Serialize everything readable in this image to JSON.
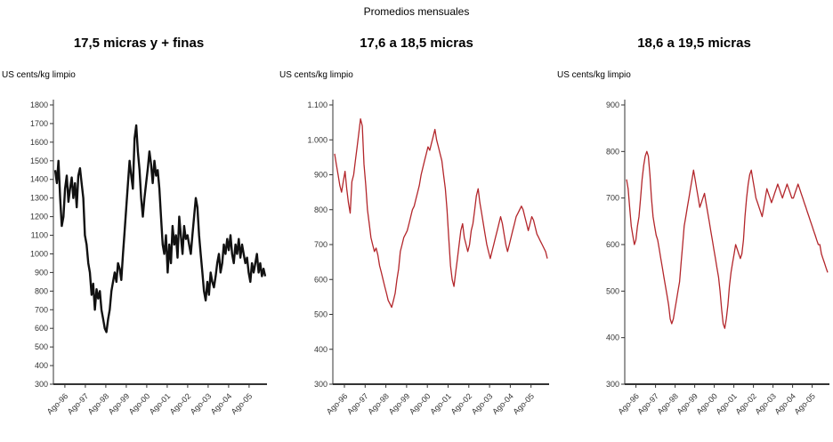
{
  "figure": {
    "title": "Promedios mensuales"
  },
  "chart_data": [
    {
      "type": "line",
      "title": "17,5 micras y + finas",
      "ylabel": "US cents/kg limpio",
      "xlabel": "",
      "ylim": [
        300,
        1800
      ],
      "yticks": [
        "1800",
        "1700",
        "1600",
        "1500",
        "1400",
        "1300",
        "1200",
        "1100",
        "1000",
        "900",
        "800",
        "700",
        "600",
        "500",
        "400",
        "300"
      ],
      "xticks": [
        "Ago-96",
        "Ago-97",
        "Ago-98",
        "Ago-99",
        "Ago-00",
        "Ago-01",
        "Ago-02",
        "Ago-03",
        "Ago-04",
        "Ago-05"
      ],
      "x_start": "1996-08",
      "x_end": "2006-04",
      "line_color": "#111111",
      "series": [
        {
          "values": [
            1450,
            1380,
            1500,
            1300,
            1150,
            1200,
            1350,
            1420,
            1280,
            1350,
            1410,
            1300,
            1380,
            1250,
            1420,
            1460,
            1380,
            1300,
            1100,
            1050,
            950,
            900,
            780,
            840,
            700,
            810,
            760,
            800,
            700,
            650,
            600,
            580,
            650,
            700,
            800,
            850,
            900,
            850,
            950,
            920,
            860,
            1000,
            1120,
            1250,
            1380,
            1500,
            1420,
            1350,
            1620,
            1690,
            1550,
            1450,
            1300,
            1200,
            1300,
            1380,
            1460,
            1550,
            1480,
            1380,
            1500,
            1420,
            1450,
            1350,
            1200,
            1050,
            1000,
            1100,
            900,
            1050,
            950,
            1150,
            1050,
            1100,
            980,
            1200,
            1100,
            1000,
            1150,
            1080,
            1100,
            1050,
            1000,
            1100,
            1200,
            1300,
            1250,
            1100,
            1000,
            900,
            800,
            750,
            850,
            780,
            900,
            850,
            820,
            880,
            950,
            1000,
            900,
            950,
            1050,
            1000,
            1080,
            1020,
            1100,
            1000,
            950,
            1050,
            1000,
            1080,
            980,
            1050,
            1000,
            950,
            980,
            900,
            850,
            950,
            900,
            950,
            1000,
            900,
            950,
            880,
            920,
            880
          ]
        }
      ]
    },
    {
      "type": "line",
      "title": "17,6 a 18,5 micras",
      "ylabel": "US cents/kg limpio",
      "xlabel": "",
      "ylim": [
        300,
        1100
      ],
      "yticks": [
        "1.100",
        "1.000",
        "900",
        "800",
        "700",
        "600",
        "500",
        "400",
        "300"
      ],
      "xticks": [
        "Ago-96",
        "Ago-97",
        "Ago-98",
        "Ago-99",
        "Ago-00",
        "Ago-01",
        "Ago-02",
        "Ago-03",
        "Ago-04",
        "Ago-05"
      ],
      "x_start": "1996-08",
      "x_end": "2006-04",
      "line_color": "#b3262b",
      "series": [
        {
          "values": [
            960,
            930,
            900,
            870,
            850,
            880,
            910,
            860,
            820,
            790,
            880,
            900,
            940,
            980,
            1020,
            1060,
            1040,
            930,
            870,
            800,
            760,
            720,
            700,
            680,
            690,
            670,
            640,
            620,
            600,
            580,
            560,
            540,
            530,
            520,
            540,
            560,
            600,
            630,
            680,
            700,
            720,
            730,
            740,
            760,
            780,
            800,
            810,
            830,
            850,
            870,
            900,
            920,
            940,
            960,
            980,
            970,
            990,
            1010,
            1030,
            1000,
            980,
            960,
            940,
            900,
            860,
            800,
            720,
            640,
            600,
            580,
            620,
            660,
            700,
            740,
            760,
            720,
            700,
            680,
            700,
            740,
            760,
            800,
            840,
            860,
            820,
            790,
            760,
            730,
            700,
            680,
            660,
            680,
            700,
            720,
            740,
            760,
            780,
            760,
            730,
            700,
            680,
            700,
            720,
            740,
            760,
            780,
            790,
            800,
            810,
            800,
            780,
            760,
            740,
            760,
            780,
            770,
            750,
            730,
            720,
            710,
            700,
            690,
            680,
            660
          ]
        }
      ]
    },
    {
      "type": "line",
      "title": "18,6 a 19,5 micras",
      "ylabel": "US cents/kg limpio",
      "xlabel": "",
      "ylim": [
        300,
        900
      ],
      "yticks": [
        "900",
        "800",
        "700",
        "600",
        "500",
        "400",
        "300"
      ],
      "xticks": [
        "Ago-96",
        "Ago-97",
        "Ago-98",
        "Ago-99",
        "Ago-00",
        "Ago-01",
        "Ago-02",
        "Ago-03",
        "Ago-04",
        "Ago-05"
      ],
      "x_start": "1996-08",
      "x_end": "2006-04",
      "line_color": "#b3262b",
      "series": [
        {
          "values": [
            740,
            720,
            680,
            640,
            620,
            600,
            610,
            640,
            660,
            700,
            740,
            770,
            790,
            800,
            790,
            750,
            700,
            660,
            640,
            620,
            610,
            590,
            570,
            550,
            530,
            510,
            490,
            470,
            440,
            430,
            440,
            460,
            480,
            500,
            520,
            560,
            600,
            640,
            660,
            680,
            700,
            720,
            740,
            760,
            740,
            720,
            700,
            680,
            690,
            700,
            710,
            690,
            670,
            650,
            630,
            610,
            590,
            570,
            550,
            530,
            500,
            460,
            430,
            420,
            440,
            470,
            510,
            540,
            560,
            580,
            600,
            590,
            580,
            570,
            580,
            610,
            660,
            700,
            730,
            750,
            760,
            740,
            720,
            700,
            690,
            680,
            670,
            660,
            680,
            700,
            720,
            710,
            700,
            690,
            700,
            710,
            720,
            730,
            720,
            710,
            700,
            710,
            720,
            730,
            720,
            710,
            700,
            700,
            710,
            720,
            730,
            720,
            710,
            700,
            690,
            680,
            670,
            660,
            650,
            640,
            630,
            620,
            610,
            600,
            600,
            580,
            570,
            560,
            550,
            540
          ]
        }
      ]
    }
  ]
}
